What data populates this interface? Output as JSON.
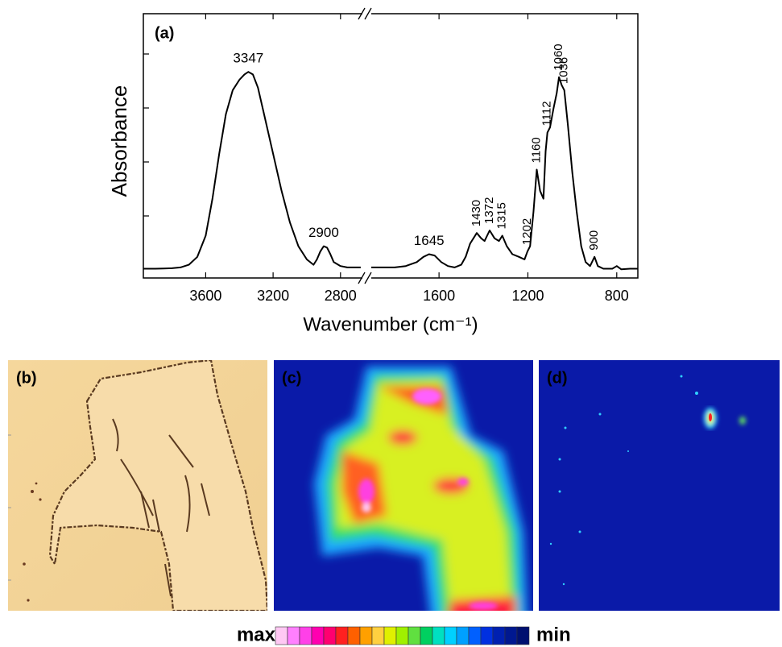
{
  "chart_data": {
    "type": "line",
    "panel_label": "(a)",
    "y_label": "Absorbance",
    "x_label": "Wavenumber (cm⁻¹)",
    "color": "#000000",
    "ylim": [
      0,
      1
    ],
    "x_segments": [
      {
        "xlim": [
          3970,
          2670
        ],
        "xticks": [
          3600,
          3200,
          2800
        ]
      },
      {
        "xlim": [
          1905,
          705
        ],
        "xticks": [
          1600,
          1200,
          800
        ]
      }
    ],
    "x": [
      3970,
      3900,
      3850,
      3800,
      3750,
      3700,
      3650,
      3600,
      3560,
      3520,
      3480,
      3440,
      3400,
      3370,
      3347,
      3320,
      3290,
      3250,
      3200,
      3150,
      3100,
      3050,
      3000,
      2960,
      2940,
      2920,
      2900,
      2880,
      2860,
      2840,
      2800,
      2760,
      2720,
      2680,
      1905,
      1850,
      1800,
      1750,
      1700,
      1670,
      1645,
      1620,
      1590,
      1560,
      1530,
      1500,
      1480,
      1460,
      1430,
      1410,
      1395,
      1372,
      1350,
      1330,
      1315,
      1295,
      1270,
      1240,
      1215,
      1202,
      1190,
      1175,
      1160,
      1145,
      1130,
      1120,
      1112,
      1100,
      1085,
      1070,
      1060,
      1048,
      1036,
      1020,
      1000,
      980,
      960,
      940,
      920,
      900,
      885,
      860,
      820,
      800,
      780,
      740,
      705
    ],
    "values": [
      0.035,
      0.035,
      0.036,
      0.037,
      0.04,
      0.05,
      0.08,
      0.16,
      0.3,
      0.47,
      0.62,
      0.71,
      0.75,
      0.77,
      0.78,
      0.77,
      0.72,
      0.61,
      0.47,
      0.33,
      0.21,
      0.12,
      0.07,
      0.05,
      0.07,
      0.1,
      0.12,
      0.115,
      0.09,
      0.06,
      0.045,
      0.04,
      0.04,
      0.04,
      0.04,
      0.04,
      0.04,
      0.045,
      0.06,
      0.08,
      0.09,
      0.085,
      0.06,
      0.045,
      0.04,
      0.05,
      0.08,
      0.13,
      0.17,
      0.15,
      0.14,
      0.18,
      0.15,
      0.14,
      0.16,
      0.12,
      0.09,
      0.08,
      0.07,
      0.1,
      0.12,
      0.25,
      0.41,
      0.33,
      0.3,
      0.48,
      0.55,
      0.57,
      0.64,
      0.7,
      0.76,
      0.73,
      0.71,
      0.58,
      0.4,
      0.25,
      0.12,
      0.06,
      0.045,
      0.08,
      0.045,
      0.035,
      0.035,
      0.045,
      0.033,
      0.035,
      0.035
    ],
    "peak_labels": [
      {
        "text": "3347",
        "x": 3347,
        "vertical": false
      },
      {
        "text": "2900",
        "x": 2900,
        "vertical": false
      },
      {
        "text": "1645",
        "x": 1645,
        "vertical": false
      },
      {
        "text": "1430",
        "x": 1430,
        "vertical": true
      },
      {
        "text": "1372",
        "x": 1372,
        "vertical": true
      },
      {
        "text": "1315",
        "x": 1315,
        "vertical": true
      },
      {
        "text": "1202",
        "x": 1202,
        "vertical": true
      },
      {
        "text": "1160",
        "x": 1160,
        "vertical": true
      },
      {
        "text": "1112",
        "x": 1112,
        "vertical": true
      },
      {
        "text": "1060",
        "x": 1060,
        "vertical": true
      },
      {
        "text": "1036",
        "x": 1036,
        "vertical": true
      },
      {
        "text": "900",
        "x": 900,
        "vertical": true
      }
    ]
  },
  "panels": [
    {
      "label": "(b)"
    },
    {
      "label": "(c)"
    },
    {
      "label": "(d)"
    }
  ],
  "colorbar": {
    "max_label": "max",
    "min_label": "min",
    "colors": [
      "#ffc8f4",
      "#ff80ff",
      "#ff40e8",
      "#ff00b0",
      "#ff0070",
      "#ff2020",
      "#ff6000",
      "#ffa000",
      "#ffd040",
      "#e0f000",
      "#a0f000",
      "#60e040",
      "#00d060",
      "#00e0c0",
      "#00d0ff",
      "#00a0ff",
      "#0060ff",
      "#0030e0",
      "#0020b0",
      "#001890",
      "#001070"
    ]
  }
}
